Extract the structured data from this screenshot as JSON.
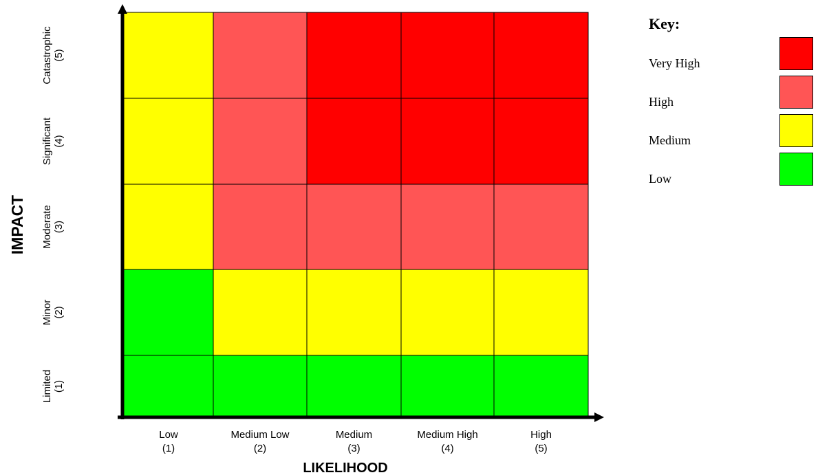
{
  "chart_data": {
    "type": "heatmap",
    "x_axis_title": "LIKELIHOOD",
    "y_axis_title": "IMPACT",
    "x_categories": [
      {
        "name": "Low",
        "code": "(1)"
      },
      {
        "name": "Medium Low",
        "code": "(2)"
      },
      {
        "name": "Medium",
        "code": "(3)"
      },
      {
        "name": "Medium High",
        "code": "(4)"
      },
      {
        "name": "High",
        "code": "(5)"
      }
    ],
    "y_categories_top_to_bottom": [
      {
        "name": "Catastrophic",
        "code": "(5)"
      },
      {
        "name": "Significant",
        "code": "(4)"
      },
      {
        "name": "Moderate",
        "code": "(3)"
      },
      {
        "name": "Minor",
        "code": "(2)"
      },
      {
        "name": "Limited",
        "code": "(1)"
      }
    ],
    "grid_levels_top_to_bottom": [
      [
        "Medium",
        "High",
        "Very High",
        "Very High",
        "Very High"
      ],
      [
        "Medium",
        "High",
        "Very High",
        "Very High",
        "Very High"
      ],
      [
        "Medium",
        "High",
        "High",
        "High",
        "High"
      ],
      [
        "Low",
        "Medium",
        "Medium",
        "Medium",
        "Medium"
      ],
      [
        "Low",
        "Low",
        "Low",
        "Low",
        "Low"
      ]
    ],
    "level_colors": {
      "Very High": "#ff0000",
      "High": "#ff5555",
      "Medium": "#ffff00",
      "Low": "#00ff00"
    }
  },
  "legend": {
    "title": "Key:",
    "items": [
      {
        "label": "Very High",
        "color": "#ff0000"
      },
      {
        "label": "High",
        "color": "#ff5555"
      },
      {
        "label": "Medium",
        "color": "#ffff00"
      },
      {
        "label": "Low",
        "color": "#00ff00"
      }
    ]
  }
}
